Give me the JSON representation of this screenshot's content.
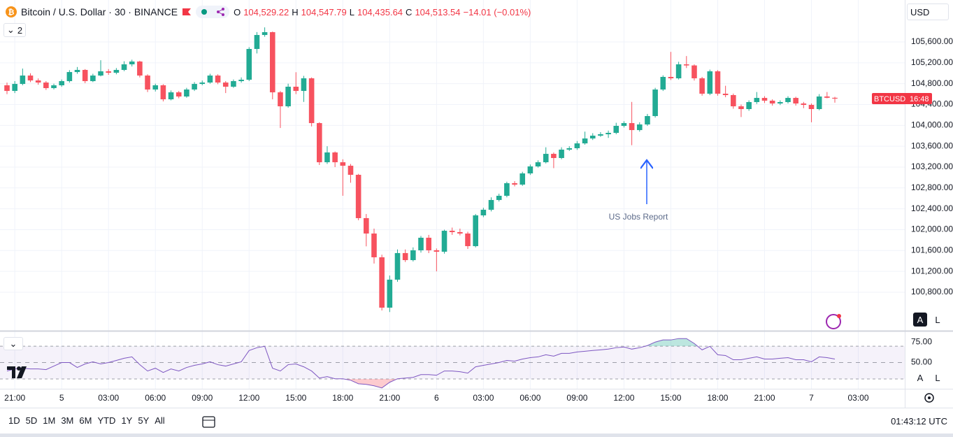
{
  "header": {
    "title": "Bitcoin / U.S. Dollar · 30 · BINANCE",
    "ohlc": [
      {
        "label": "O",
        "value": "104,529.22"
      },
      {
        "label": "H",
        "value": "104,547.79"
      },
      {
        "label": "L",
        "value": "104,435.64"
      },
      {
        "label": "C",
        "value": "104,513.54"
      }
    ],
    "change": "−14.01 (−0.01%)",
    "indicator_count": "2"
  },
  "ui": {
    "currency": "USD",
    "scale_buttons": [
      "A",
      "L"
    ],
    "price_tag": {
      "symbol": "BTCUSD",
      "countdown": "16:48"
    },
    "timeframes": [
      "1D",
      "5D",
      "1M",
      "3M",
      "6M",
      "YTD",
      "1Y",
      "5Y",
      "All"
    ],
    "clock": "01:43:12 UTC"
  },
  "chart_data": [
    {
      "type": "candlestick",
      "up_color": "#22ab94",
      "down_color": "#f7525f",
      "grid": true,
      "annotation": "US Jobs Report",
      "categories": [
        null,
        "21:00",
        null,
        null,
        null,
        null,
        null,
        "5",
        null,
        null,
        null,
        null,
        null,
        "03:00",
        null,
        null,
        null,
        null,
        null,
        "06:00",
        null,
        null,
        null,
        null,
        null,
        "09:00",
        null,
        null,
        null,
        null,
        null,
        "12:00",
        null,
        null,
        null,
        null,
        null,
        "15:00",
        null,
        null,
        null,
        null,
        null,
        "18:00",
        null,
        null,
        null,
        null,
        null,
        "21:00",
        null,
        null,
        null,
        null,
        null,
        "6",
        null,
        null,
        null,
        null,
        null,
        "03:00",
        null,
        null,
        null,
        null,
        null,
        "06:00",
        null,
        null,
        null,
        null,
        null,
        "09:00",
        null,
        null,
        null,
        null,
        null,
        "12:00",
        null,
        null,
        null,
        null,
        null,
        "15:00",
        null,
        null,
        null,
        null,
        null,
        "18:00",
        null,
        null,
        null,
        null,
        null,
        "21:00",
        null,
        null,
        null,
        null,
        null,
        "7",
        null,
        null,
        null,
        null,
        null,
        "03:00"
      ],
      "open": [
        104769,
        104661,
        104795,
        104956,
        104862,
        104822,
        104715,
        104769,
        104849,
        105023,
        105064,
        104849,
        104956,
        105037,
        105010,
        105064,
        105171,
        105225,
        104956,
        104688,
        104769,
        104500,
        104634,
        104554,
        104688,
        104795,
        104822,
        104956,
        104822,
        104742,
        104849,
        104876,
        105466,
        105734,
        105788,
        104634,
        104366,
        104742,
        104661,
        104903,
        104044,
        103293,
        103481,
        103293,
        103226,
        103052,
        102221,
        101926,
        101470,
        100504,
        101041,
        101551,
        101416,
        101604,
        101845,
        101604,
        101577,
        101979,
        101953,
        101926,
        101684,
        102274,
        102382,
        102569,
        102650,
        102891,
        102864,
        103079,
        103213,
        103293,
        103454,
        103374,
        103535,
        103562,
        103655,
        103749,
        103803,
        103830,
        103857,
        103991,
        104044,
        103910,
        104018,
        104179,
        104688,
        104930,
        104903,
        105171,
        105150,
        104903,
        104608,
        105037,
        104608,
        104581,
        104366,
        104313,
        104447,
        104527,
        104474,
        104420,
        104447,
        104527,
        104420,
        104393,
        104313,
        104554,
        104529.22,
        null,
        null,
        null
      ],
      "high": [
        104820,
        104850,
        105090,
        105000,
        104900,
        104850,
        104800,
        104880,
        105060,
        105120,
        105080,
        104990,
        105250,
        105080,
        105100,
        105230,
        105260,
        105240,
        104980,
        104800,
        104790,
        104670,
        104660,
        104720,
        104830,
        104860,
        104990,
        104980,
        104850,
        104880,
        104920,
        105500,
        105790,
        105880,
        105800,
        104660,
        104800,
        105020,
        104950,
        104920,
        104060,
        103600,
        103500,
        103350,
        103260,
        103070,
        102300,
        102020,
        101520,
        101120,
        101620,
        101620,
        101660,
        101880,
        101900,
        101640,
        102000,
        102040,
        102020,
        101960,
        102300,
        102420,
        102620,
        102690,
        102920,
        102930,
        103110,
        103250,
        103330,
        103580,
        103480,
        103580,
        103600,
        103700,
        103880,
        103850,
        103870,
        103900,
        104050,
        104080,
        104450,
        104060,
        104220,
        104720,
        104960,
        105410,
        105220,
        105330,
        105170,
        104930,
        105070,
        105060,
        104760,
        104610,
        104400,
        104480,
        104640,
        104560,
        104500,
        104480,
        104560,
        104550,
        104450,
        104420,
        104600,
        104640,
        104547.79,
        null,
        null,
        null
      ],
      "low": [
        104600,
        104620,
        104770,
        104830,
        104780,
        104680,
        104690,
        104740,
        104820,
        104990,
        104810,
        104830,
        104940,
        104970,
        104980,
        105040,
        105130,
        104920,
        104640,
        104650,
        104460,
        104480,
        104520,
        104530,
        104660,
        104770,
        104800,
        104790,
        104620,
        104720,
        104820,
        104850,
        105380,
        105700,
        104500,
        103950,
        104340,
        104600,
        104450,
        103980,
        103240,
        103260,
        103200,
        102650,
        102900,
        102180,
        101680,
        101350,
        100450,
        100420,
        101000,
        101380,
        101390,
        101560,
        101550,
        101200,
        101540,
        101900,
        101890,
        101630,
        101660,
        102240,
        102350,
        102540,
        102620,
        102830,
        102840,
        103050,
        103190,
        103270,
        103180,
        103350,
        103510,
        103530,
        103630,
        103720,
        103780,
        103760,
        103830,
        103960,
        103620,
        103880,
        103990,
        104150,
        104660,
        104870,
        104880,
        105100,
        104860,
        104570,
        104580,
        104570,
        104540,
        104320,
        104160,
        104280,
        104410,
        104430,
        104380,
        104390,
        104420,
        104380,
        104330,
        104060,
        104290,
        104520,
        104435.64,
        null,
        null,
        null
      ],
      "close": [
        104661,
        104795,
        104956,
        104862,
        104822,
        104715,
        104769,
        104849,
        105023,
        105064,
        104849,
        104956,
        105037,
        105010,
        105064,
        105171,
        105225,
        104956,
        104688,
        104769,
        104500,
        104634,
        104554,
        104688,
        104795,
        104822,
        104956,
        104822,
        104742,
        104849,
        104876,
        105466,
        105734,
        105788,
        104634,
        104366,
        104742,
        104661,
        104903,
        104044,
        103293,
        103481,
        103293,
        103226,
        103052,
        102221,
        101926,
        101470,
        100504,
        101041,
        101551,
        101416,
        101604,
        101845,
        101604,
        101577,
        101979,
        101953,
        101926,
        101684,
        102274,
        102382,
        102569,
        102650,
        102891,
        102864,
        103079,
        103213,
        103293,
        103454,
        103374,
        103535,
        103562,
        103655,
        103749,
        103803,
        103830,
        103857,
        103991,
        104044,
        103910,
        104018,
        104179,
        104688,
        104930,
        104903,
        105171,
        105150,
        104903,
        104608,
        105037,
        104608,
        104581,
        104366,
        104313,
        104447,
        104527,
        104474,
        104420,
        104447,
        104527,
        104420,
        104393,
        104313,
        104554,
        104530,
        104513.54,
        null,
        null,
        null
      ],
      "ylim": [
        100075,
        106405
      ],
      "yticks": [
        {
          "value": 105600,
          "label": "105,600.00"
        },
        {
          "value": 105200,
          "label": "105,200.00"
        },
        {
          "value": 104800,
          "label": "104,800.00"
        },
        {
          "value": 104400,
          "label": "104,400.00"
        },
        {
          "value": 104000,
          "label": "104,000.00"
        },
        {
          "value": 103600,
          "label": "103,600.00"
        },
        {
          "value": 103200,
          "label": "103,200.00"
        },
        {
          "value": 102800,
          "label": "102,800.00"
        },
        {
          "value": 102400,
          "label": "102,400.00"
        },
        {
          "value": 102000,
          "label": "102,000.00"
        },
        {
          "value": 101600,
          "label": "101,600.00"
        },
        {
          "value": 101200,
          "label": "101,200.00"
        },
        {
          "value": 100800,
          "label": "100,800.00"
        }
      ]
    },
    {
      "type": "line",
      "color": "#7e57c2",
      "levels": [
        70,
        50,
        30
      ],
      "overbought_color": "#22ab94",
      "oversold_color": "#f7525f",
      "values": [
        39.7,
        42.2,
        43.1,
        42.2,
        42.2,
        41.4,
        45.7,
        50,
        50,
        44,
        48.3,
        50.9,
        48.3,
        50,
        52.6,
        55.2,
        56.9,
        47.4,
        39.7,
        43.1,
        37.9,
        42.2,
        39.7,
        44,
        46.6,
        48.3,
        50.9,
        47.4,
        45.7,
        48.3,
        50.9,
        64.7,
        68.1,
        69.8,
        43.1,
        39.7,
        47.4,
        48.3,
        44.8,
        39.7,
        31,
        32.8,
        30.2,
        30.2,
        28.4,
        24.1,
        23.3,
        21.6,
        19,
        25.9,
        30.2,
        31,
        31.9,
        35.3,
        35.3,
        34.5,
        39.7,
        39.7,
        38.8,
        37.1,
        44.8,
        46.6,
        48.3,
        50,
        52.6,
        51.7,
        54.3,
        56,
        56.9,
        59.5,
        57.8,
        61.2,
        61.2,
        62.9,
        63.8,
        64.7,
        65.5,
        66.4,
        68.1,
        69,
        66.4,
        68.1,
        70.7,
        75,
        77.6,
        77.6,
        79.3,
        79.3,
        73.3,
        65.5,
        69.8,
        59.5,
        58.6,
        53.4,
        53.4,
        55.2,
        56.9,
        54.3,
        54.3,
        55.2,
        56,
        53.4,
        53.4,
        50.9,
        56.9,
        56,
        54.3,
        null,
        null,
        null
      ],
      "ylim": [
        18,
        88
      ],
      "yticks": [
        {
          "value": 75,
          "label": "75.00"
        },
        {
          "value": 50,
          "label": "50.00"
        }
      ]
    }
  ]
}
